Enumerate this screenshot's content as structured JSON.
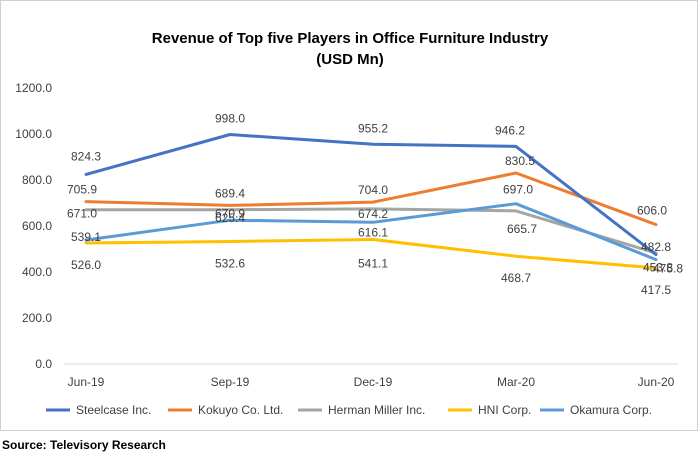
{
  "chart_data": {
    "type": "line",
    "title": "Revenue of Top five Players in Office Furniture Industry",
    "subtitle": "(USD Mn)",
    "categories": [
      "Jun-19",
      "Sep-19",
      "Dec-19",
      "Mar-20",
      "Jun-20"
    ],
    "ylim": [
      0,
      1200
    ],
    "yticks": [
      "0.0",
      "200.0",
      "400.0",
      "600.0",
      "800.0",
      "1000.0",
      "1200.0"
    ],
    "legend_position": "bottom",
    "grid": false,
    "series": [
      {
        "name": "Steelcase Inc.",
        "color": "#4472c4",
        "values": [
          824.3,
          998.0,
          955.2,
          946.2,
          475.8
        ],
        "labels": [
          "824.3",
          "998.0",
          "955.2",
          "946.2",
          "475.8"
        ]
      },
      {
        "name": "Kokuyo Co. Ltd.",
        "color": "#ed7d31",
        "values": [
          705.9,
          689.4,
          704.0,
          830.5,
          606.0
        ],
        "labels": [
          "705.9",
          "689.4",
          "704.0",
          "830.5",
          "606.0"
        ]
      },
      {
        "name": "Herman Miller Inc.",
        "color": "#a5a5a5",
        "values": [
          671.0,
          670.9,
          674.2,
          665.7,
          482.8
        ],
        "labels": [
          "671.0",
          "670.9",
          "674.2",
          "665.7",
          "482.8"
        ]
      },
      {
        "name": "HNI Corp.",
        "color": "#ffc000",
        "values": [
          526.0,
          532.6,
          541.1,
          468.7,
          417.5
        ],
        "labels": [
          "526.0",
          "532.6",
          "541.1",
          "468.7",
          "417.5"
        ]
      },
      {
        "name": "Okamura Corp.",
        "color": "#5b9bd5",
        "values": [
          539.1,
          625.4,
          616.1,
          697.0,
          453.8
        ],
        "labels": [
          "539.1",
          "625.4",
          "616.1",
          "697.0",
          "453.8"
        ]
      }
    ]
  },
  "source": "Source: Televisory Research"
}
